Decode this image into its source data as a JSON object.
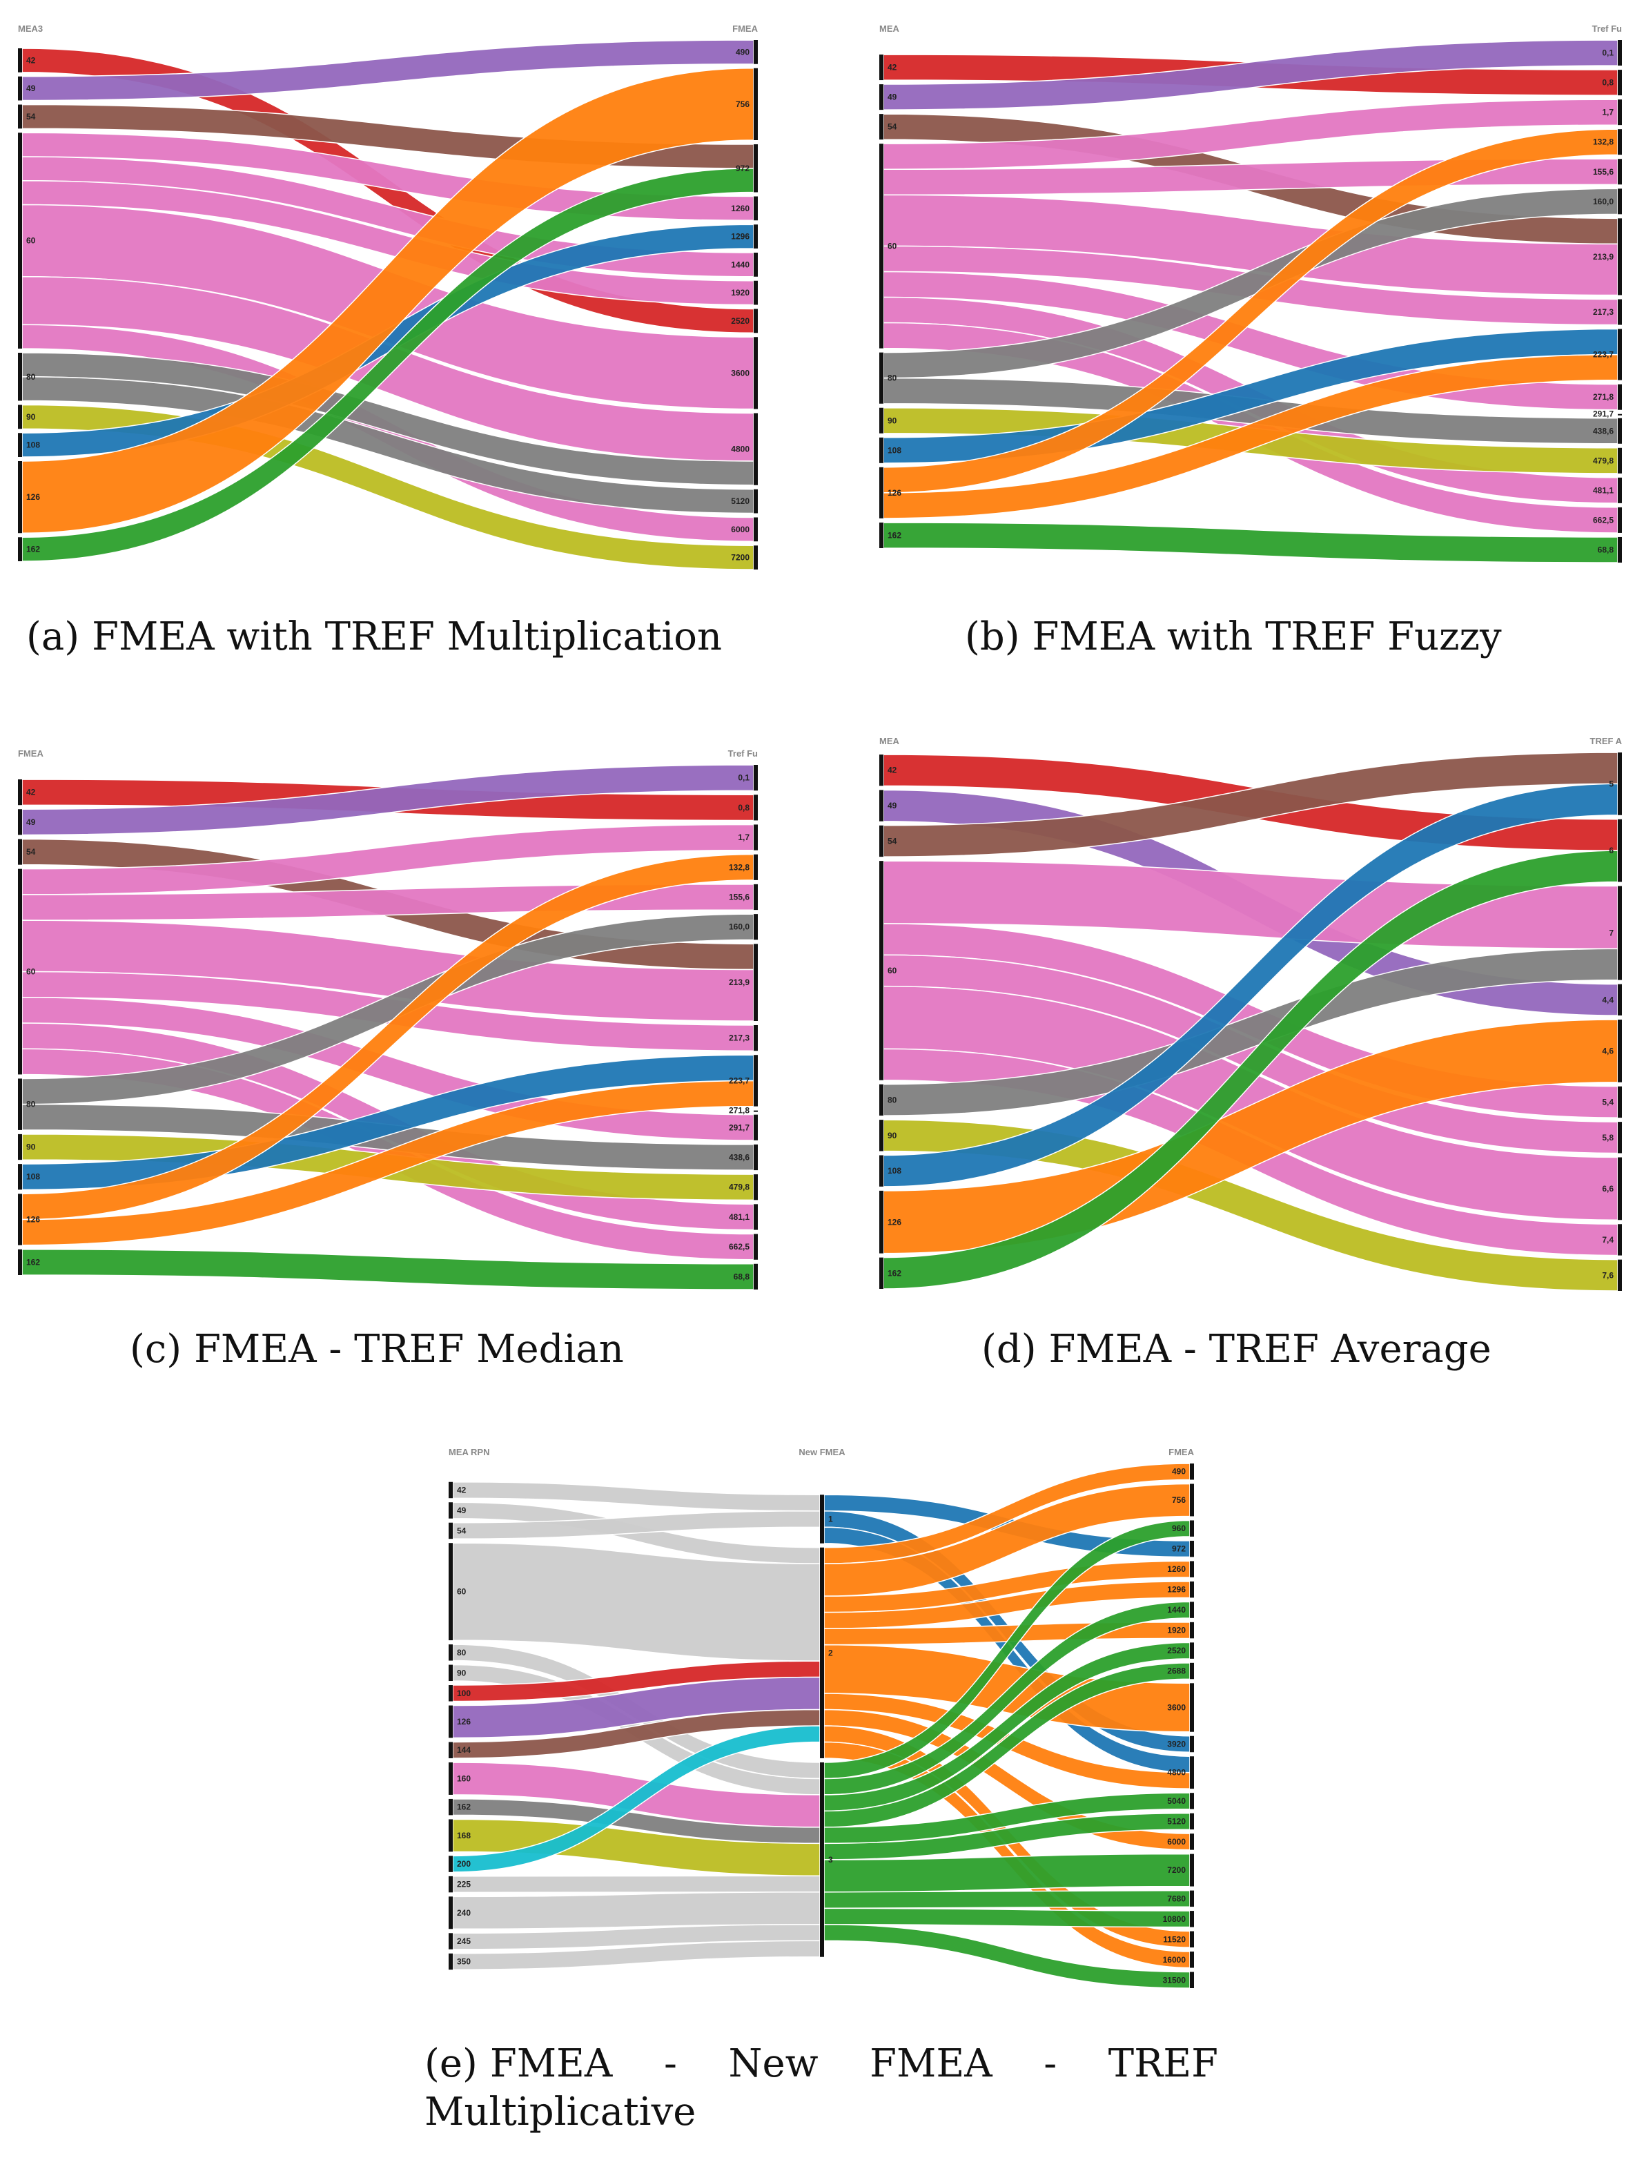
{
  "chart_data": [
    {
      "type": "sankey",
      "id": "a",
      "caption_letter": "(a)",
      "caption": "FMEA with TREF Multiplication",
      "left_header": "MEA3",
      "right_header": "FMEA",
      "left_nodes": [
        "42",
        "49",
        "54",
        "60",
        "80",
        "90",
        "108",
        "126",
        "162"
      ],
      "right_nodes": [
        "490",
        "756",
        "972",
        "1260",
        "1296",
        "1440",
        "1920",
        "2520",
        "3600",
        "4800",
        "5120",
        "6000",
        "7200"
      ],
      "links": [
        {
          "source": "42",
          "target": "2520",
          "value": 1,
          "color": "#d62728"
        },
        {
          "source": "49",
          "target": "490",
          "value": 1,
          "color": "#9467bd"
        },
        {
          "source": "54",
          "target": "972",
          "value": 1,
          "color": "#8c564b"
        },
        {
          "source": "60",
          "target": "1260",
          "value": 1,
          "color": "#e377c2"
        },
        {
          "source": "60",
          "target": "1440",
          "value": 1,
          "color": "#e377c2"
        },
        {
          "source": "60",
          "target": "1920",
          "value": 1,
          "color": "#e377c2"
        },
        {
          "source": "60",
          "target": "3600",
          "value": 3,
          "color": "#e377c2"
        },
        {
          "source": "60",
          "target": "4800",
          "value": 2,
          "color": "#e377c2"
        },
        {
          "source": "60",
          "target": "6000",
          "value": 1,
          "color": "#e377c2"
        },
        {
          "source": "80",
          "target": "4800",
          "value": 1,
          "color": "#7f7f7f"
        },
        {
          "source": "80",
          "target": "5120",
          "value": 1,
          "color": "#7f7f7f"
        },
        {
          "source": "90",
          "target": "7200",
          "value": 1,
          "color": "#bcbd22"
        },
        {
          "source": "108",
          "target": "1296",
          "value": 1,
          "color": "#1f77b4"
        },
        {
          "source": "126",
          "target": "756",
          "value": 3,
          "color": "#ff7f0e"
        },
        {
          "source": "162",
          "target": "972",
          "value": 1,
          "color": "#2ca02c"
        }
      ]
    },
    {
      "type": "sankey",
      "id": "b",
      "caption_letter": "(b)",
      "caption": "FMEA with TREF Fuzzy",
      "left_header": "MEA",
      "right_header": "Tref Fu",
      "left_nodes": [
        "42",
        "49",
        "54",
        "60",
        "80",
        "90",
        "108",
        "126",
        "162"
      ],
      "right_nodes": [
        "0,1",
        "0,8",
        "1,7",
        "132,8",
        "155,6",
        "160,0",
        "213,9",
        "217,3",
        "223,7",
        "271,8",
        "291,7",
        "438,6",
        "479,8",
        "481,1",
        "662,5",
        "68,8"
      ],
      "links": [
        {
          "source": "42",
          "target": "0,8",
          "value": 1,
          "color": "#d62728"
        },
        {
          "source": "49",
          "target": "0,1",
          "value": 1,
          "color": "#9467bd"
        },
        {
          "source": "54",
          "target": "213,9",
          "value": 1,
          "color": "#8c564b"
        },
        {
          "source": "60",
          "target": "1,7",
          "value": 1,
          "color": "#e377c2"
        },
        {
          "source": "60",
          "target": "155,6",
          "value": 1,
          "color": "#e377c2"
        },
        {
          "source": "60",
          "target": "213,9",
          "value": 2,
          "color": "#e377c2"
        },
        {
          "source": "60",
          "target": "217,3",
          "value": 1,
          "color": "#e377c2"
        },
        {
          "source": "60",
          "target": "271,8",
          "value": 1,
          "color": "#e377c2"
        },
        {
          "source": "60",
          "target": "481,1",
          "value": 1,
          "color": "#e377c2"
        },
        {
          "source": "60",
          "target": "662,5",
          "value": 1,
          "color": "#e377c2"
        },
        {
          "source": "80",
          "target": "160,0",
          "value": 1,
          "color": "#7f7f7f"
        },
        {
          "source": "80",
          "target": "438,6",
          "value": 1,
          "color": "#7f7f7f"
        },
        {
          "source": "90",
          "target": "479,8",
          "value": 1,
          "color": "#bcbd22"
        },
        {
          "source": "108",
          "target": "223,7",
          "value": 1,
          "color": "#1f77b4"
        },
        {
          "source": "126",
          "target": "132,8",
          "value": 1,
          "color": "#ff7f0e"
        },
        {
          "source": "126",
          "target": "223,7",
          "value": 1,
          "color": "#ff7f0e"
        },
        {
          "source": "162",
          "target": "68,8",
          "value": 1,
          "color": "#2ca02c"
        }
      ]
    },
    {
      "type": "sankey",
      "id": "c",
      "caption_letter": "(c)",
      "caption": "FMEA - TREF Median",
      "left_header": "FMEA",
      "right_header": "Tref Fu",
      "left_nodes": [
        "42",
        "49",
        "54",
        "60",
        "80",
        "90",
        "108",
        "126",
        "162"
      ],
      "right_nodes": [
        "0,1",
        "0,8",
        "1,7",
        "132,8",
        "155,6",
        "160,0",
        "213,9",
        "217,3",
        "223,7",
        "271,8",
        "291,7",
        "438,6",
        "479,8",
        "481,1",
        "662,5",
        "68,8"
      ],
      "links": [
        {
          "source": "42",
          "target": "0,8",
          "value": 1,
          "color": "#d62728"
        },
        {
          "source": "49",
          "target": "0,1",
          "value": 1,
          "color": "#9467bd"
        },
        {
          "source": "54",
          "target": "213,9",
          "value": 1,
          "color": "#8c564b"
        },
        {
          "source": "60",
          "target": "1,7",
          "value": 1,
          "color": "#e377c2"
        },
        {
          "source": "60",
          "target": "155,6",
          "value": 1,
          "color": "#e377c2"
        },
        {
          "source": "60",
          "target": "213,9",
          "value": 2,
          "color": "#e377c2"
        },
        {
          "source": "60",
          "target": "217,3",
          "value": 1,
          "color": "#e377c2"
        },
        {
          "source": "60",
          "target": "291,7",
          "value": 1,
          "color": "#e377c2"
        },
        {
          "source": "60",
          "target": "481,1",
          "value": 1,
          "color": "#e377c2"
        },
        {
          "source": "60",
          "target": "662,5",
          "value": 1,
          "color": "#e377c2"
        },
        {
          "source": "80",
          "target": "160,0",
          "value": 1,
          "color": "#7f7f7f"
        },
        {
          "source": "80",
          "target": "438,6",
          "value": 1,
          "color": "#7f7f7f"
        },
        {
          "source": "90",
          "target": "479,8",
          "value": 1,
          "color": "#bcbd22"
        },
        {
          "source": "108",
          "target": "223,7",
          "value": 1,
          "color": "#1f77b4"
        },
        {
          "source": "126",
          "target": "132,8",
          "value": 1,
          "color": "#ff7f0e"
        },
        {
          "source": "126",
          "target": "223,7",
          "value": 1,
          "color": "#ff7f0e"
        },
        {
          "source": "162",
          "target": "68,8",
          "value": 1,
          "color": "#2ca02c"
        }
      ]
    },
    {
      "type": "sankey",
      "id": "d",
      "caption_letter": "(d)",
      "caption": "FMEA - TREF Average",
      "left_header": "MEA",
      "right_header": "TREF A",
      "left_nodes": [
        "42",
        "49",
        "54",
        "60",
        "80",
        "90",
        "108",
        "126",
        "162"
      ],
      "right_nodes": [
        "5",
        "6",
        "7",
        "4,4",
        "4,6",
        "5,4",
        "5,8",
        "6,6",
        "7,4",
        "7,6"
      ],
      "links": [
        {
          "source": "42",
          "target": "6",
          "value": 1,
          "color": "#d62728"
        },
        {
          "source": "49",
          "target": "4,4",
          "value": 1,
          "color": "#9467bd"
        },
        {
          "source": "54",
          "target": "5",
          "value": 1,
          "color": "#8c564b"
        },
        {
          "source": "60",
          "target": "7",
          "value": 2,
          "color": "#e377c2"
        },
        {
          "source": "60",
          "target": "5,4",
          "value": 1,
          "color": "#e377c2"
        },
        {
          "source": "60",
          "target": "5,8",
          "value": 1,
          "color": "#e377c2"
        },
        {
          "source": "60",
          "target": "6,6",
          "value": 2,
          "color": "#e377c2"
        },
        {
          "source": "60",
          "target": "7,4",
          "value": 1,
          "color": "#e377c2"
        },
        {
          "source": "80",
          "target": "7",
          "value": 1,
          "color": "#7f7f7f"
        },
        {
          "source": "90",
          "target": "7,6",
          "value": 1,
          "color": "#bcbd22"
        },
        {
          "source": "108",
          "target": "5",
          "value": 1,
          "color": "#1f77b4"
        },
        {
          "source": "126",
          "target": "4,6",
          "value": 2,
          "color": "#ff7f0e"
        },
        {
          "source": "162",
          "target": "6",
          "value": 1,
          "color": "#2ca02c"
        }
      ]
    },
    {
      "type": "sankey",
      "id": "e",
      "caption_letter": "(e)",
      "caption": "FMEA - New FMEA - TREF Multiplicative",
      "left_header": "MEA RPN",
      "middle_header": "New FMEA",
      "right_header": "FMEA",
      "left_nodes": [
        "42",
        "49",
        "54",
        "60",
        "80",
        "90",
        "100",
        "126",
        "144",
        "160",
        "162",
        "168",
        "200",
        "225",
        "240",
        "245",
        "350"
      ],
      "middle_nodes": [
        "1",
        "2",
        "3"
      ],
      "right_nodes": [
        "490",
        "756",
        "960",
        "972",
        "1260",
        "1296",
        "1440",
        "1920",
        "2520",
        "2688",
        "3600",
        "3920",
        "4800",
        "5040",
        "5120",
        "6000",
        "7200",
        "7680",
        "10800",
        "11520",
        "16000",
        "31500"
      ],
      "links": [
        {
          "source": "42",
          "target": "1",
          "value": 1,
          "color": "#cccccc"
        },
        {
          "source": "49",
          "target": "2",
          "value": 1,
          "color": "#cccccc"
        },
        {
          "source": "54",
          "target": "1",
          "value": 1,
          "color": "#cccccc"
        },
        {
          "source": "60",
          "target": "2",
          "value": 6,
          "color": "#cccccc"
        },
        {
          "source": "80",
          "target": "3",
          "value": 1,
          "color": "#cccccc"
        },
        {
          "source": "90",
          "target": "3",
          "value": 1,
          "color": "#cccccc"
        },
        {
          "source": "100",
          "target": "2",
          "value": 1,
          "color": "#d62728"
        },
        {
          "source": "126",
          "target": "2",
          "value": 2,
          "color": "#9467bd"
        },
        {
          "source": "144",
          "target": "2",
          "value": 1,
          "color": "#8c564b"
        },
        {
          "source": "160",
          "target": "3",
          "value": 2,
          "color": "#e377c2"
        },
        {
          "source": "162",
          "target": "3",
          "value": 1,
          "color": "#7f7f7f"
        },
        {
          "source": "168",
          "target": "3",
          "value": 2,
          "color": "#bcbd22"
        },
        {
          "source": "200",
          "target": "2",
          "value": 1,
          "color": "#17becf"
        },
        {
          "source": "225",
          "target": "3",
          "value": 1,
          "color": "#cccccc"
        },
        {
          "source": "240",
          "target": "3",
          "value": 2,
          "color": "#cccccc"
        },
        {
          "source": "245",
          "target": "3",
          "value": 1,
          "color": "#cccccc"
        },
        {
          "source": "350",
          "target": "3",
          "value": 1,
          "color": "#cccccc"
        },
        {
          "source": "1",
          "target": "972",
          "value": 1,
          "color": "#1f77b4"
        },
        {
          "source": "1",
          "target": "3920",
          "value": 1,
          "color": "#1f77b4"
        },
        {
          "source": "1",
          "target": "4800",
          "value": 1,
          "color": "#1f77b4"
        },
        {
          "source": "2",
          "target": "490",
          "value": 1,
          "color": "#ff7f0e"
        },
        {
          "source": "2",
          "target": "756",
          "value": 2,
          "color": "#ff7f0e"
        },
        {
          "source": "2",
          "target": "1260",
          "value": 1,
          "color": "#ff7f0e"
        },
        {
          "source": "2",
          "target": "1296",
          "value": 1,
          "color": "#ff7f0e"
        },
        {
          "source": "2",
          "target": "1920",
          "value": 1,
          "color": "#ff7f0e"
        },
        {
          "source": "2",
          "target": "3600",
          "value": 3,
          "color": "#ff7f0e"
        },
        {
          "source": "2",
          "target": "4800",
          "value": 1,
          "color": "#ff7f0e"
        },
        {
          "source": "2",
          "target": "6000",
          "value": 1,
          "color": "#ff7f0e"
        },
        {
          "source": "2",
          "target": "11520",
          "value": 1,
          "color": "#ff7f0e"
        },
        {
          "source": "2",
          "target": "16000",
          "value": 1,
          "color": "#ff7f0e"
        },
        {
          "source": "3",
          "target": "960",
          "value": 1,
          "color": "#2ca02c"
        },
        {
          "source": "3",
          "target": "1440",
          "value": 1,
          "color": "#2ca02c"
        },
        {
          "source": "3",
          "target": "2520",
          "value": 1,
          "color": "#2ca02c"
        },
        {
          "source": "3",
          "target": "2688",
          "value": 1,
          "color": "#2ca02c"
        },
        {
          "source": "3",
          "target": "5040",
          "value": 1,
          "color": "#2ca02c"
        },
        {
          "source": "3",
          "target": "5120",
          "value": 1,
          "color": "#2ca02c"
        },
        {
          "source": "3",
          "target": "7200",
          "value": 2,
          "color": "#2ca02c"
        },
        {
          "source": "3",
          "target": "7680",
          "value": 1,
          "color": "#2ca02c"
        },
        {
          "source": "3",
          "target": "10800",
          "value": 1,
          "color": "#2ca02c"
        },
        {
          "source": "3",
          "target": "31500",
          "value": 1,
          "color": "#2ca02c"
        }
      ]
    }
  ]
}
